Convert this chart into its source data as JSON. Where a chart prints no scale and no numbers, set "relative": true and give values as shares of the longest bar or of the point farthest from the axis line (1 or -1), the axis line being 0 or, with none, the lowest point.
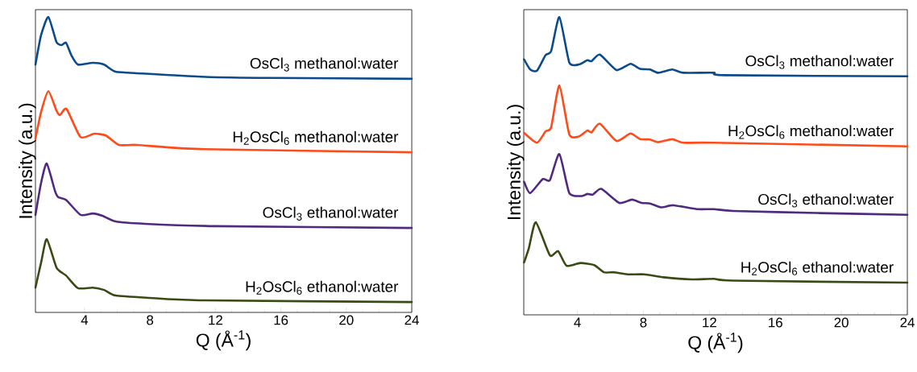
{
  "chart_data": [
    {
      "type": "line",
      "xlabel": "Q (Å$^{-1}$)",
      "ylabel": "Intensity (a.u.)",
      "xlim": [
        1,
        24
      ],
      "xticks": [
        4,
        8,
        12,
        16,
        20,
        24
      ],
      "relative": true,
      "marker": "none",
      "line_style": "solid",
      "series": [
        {
          "name": "OsCl$_{3}$ methanol:water",
          "color": "#0b4a8b",
          "x": [
            1,
            1.35,
            1.79,
            2.28,
            2.6,
            2.87,
            3.2,
            3.6,
            4.5,
            5.2,
            5.9,
            7.5,
            11.1,
            15.2,
            24
          ],
          "values": [
            0.839,
            0.94,
            1.0,
            0.916,
            0.905,
            0.913,
            0.87,
            0.839,
            0.845,
            0.839,
            0.815,
            0.809,
            0.798,
            0.794,
            0.791
          ]
        },
        {
          "name": "H$_{2}$OsCl$_{6}$ methanol:water",
          "color": "#ff4a1a",
          "x": [
            1,
            1.35,
            1.79,
            2.28,
            2.5,
            2.9,
            3.75,
            4.6,
            5.3,
            6.1,
            7.2,
            11.1,
            24
          ],
          "values": [
            0.589,
            0.68,
            0.749,
            0.684,
            0.668,
            0.689,
            0.594,
            0.605,
            0.599,
            0.567,
            0.567,
            0.553,
            0.542
          ]
        },
        {
          "name": "OsCl$_{3}$ ethanol:water",
          "color": "#4f2a7f",
          "x": [
            1,
            1.35,
            1.69,
            2.2,
            2.4,
            2.87,
            3.76,
            4.5,
            5.1,
            5.9,
            7.7,
            12,
            24
          ],
          "values": [
            0.33,
            0.44,
            0.504,
            0.41,
            0.39,
            0.381,
            0.33,
            0.335,
            0.327,
            0.308,
            0.3,
            0.292,
            0.286
          ]
        },
        {
          "name": "H$_{2}$OsCl$_{6}$ ethanol:water",
          "color": "#3a4a15",
          "x": [
            1,
            1.35,
            1.69,
            2.3,
            2.87,
            3.6,
            4.5,
            5.2,
            5.9,
            8,
            11,
            24
          ],
          "values": [
            0.084,
            0.17,
            0.248,
            0.15,
            0.125,
            0.082,
            0.084,
            0.076,
            0.057,
            0.049,
            0.041,
            0.035
          ]
        }
      ]
    },
    {
      "type": "line",
      "xlabel": "Q (Å$^{-1}$)",
      "ylabel": "Intensity (a.u.)",
      "xlim": [
        0.75,
        24
      ],
      "xticks": [
        4,
        8,
        12,
        16,
        20,
        24
      ],
      "relative": true,
      "marker": "none",
      "line_style": "solid",
      "series": [
        {
          "name": "OsCl$_{3}$ methanol:water",
          "color": "#0b4a8b",
          "x": [
            0.77,
            1.14,
            1.55,
            2.07,
            2.41,
            2.91,
            3.51,
            4.1,
            4.6,
            4.86,
            5.36,
            6.37,
            7.22,
            7.8,
            8.4,
            8.9,
            9.75,
            10.42,
            12.27,
            12.95,
            24
          ],
          "values": [
            0.858,
            0.824,
            0.82,
            0.872,
            0.886,
            1.0,
            0.847,
            0.841,
            0.855,
            0.852,
            0.874,
            0.822,
            0.843,
            0.826,
            0.824,
            0.813,
            0.824,
            0.813,
            0.813,
            0.805,
            0.801
          ]
        },
        {
          "name": "H$_{2}$OsCl$_{6}$ methanol:water",
          "color": "#ff4a1a",
          "x": [
            0.77,
            1.55,
            2.07,
            2.41,
            2.91,
            3.51,
            4.1,
            4.6,
            4.86,
            5.36,
            6.37,
            7.22,
            7.8,
            8.4,
            8.9,
            9.75,
            10.42,
            12.27,
            24
          ],
          "values": [
            0.611,
            0.578,
            0.616,
            0.63,
            0.77,
            0.606,
            0.599,
            0.619,
            0.613,
            0.642,
            0.584,
            0.609,
            0.59,
            0.589,
            0.58,
            0.59,
            0.578,
            0.578,
            0.566
          ]
        },
        {
          "name": "OsCl$_{3}$ ethanol:water",
          "color": "#4f2a7f",
          "x": [
            0.77,
            1.14,
            1.9,
            2.33,
            2.91,
            3.51,
            4.27,
            4.6,
            4.94,
            5.45,
            6.54,
            7.3,
            7.89,
            8.4,
            9.07,
            9.83,
            11.26,
            12.27,
            13.45,
            18.52,
            24
          ],
          "values": [
            0.447,
            0.409,
            0.456,
            0.452,
            0.54,
            0.409,
            0.399,
            0.406,
            0.404,
            0.423,
            0.376,
            0.387,
            0.376,
            0.374,
            0.361,
            0.368,
            0.355,
            0.355,
            0.349,
            0.342,
            0.336
          ]
        },
        {
          "name": "H$_{2}$OsCl$_{6}$ ethanol:water",
          "color": "#3a4a15",
          "x": [
            0.77,
            1.06,
            1.48,
            2.33,
            2.83,
            3.34,
            4.18,
            5.02,
            5.61,
            6.2,
            7.05,
            8.06,
            9.24,
            10.92,
            12.27,
            13.45,
            24
          ],
          "values": [
            0.176,
            0.224,
            0.311,
            0.2,
            0.214,
            0.165,
            0.174,
            0.167,
            0.143,
            0.143,
            0.136,
            0.136,
            0.126,
            0.119,
            0.121,
            0.115,
            0.108
          ]
        }
      ]
    }
  ]
}
